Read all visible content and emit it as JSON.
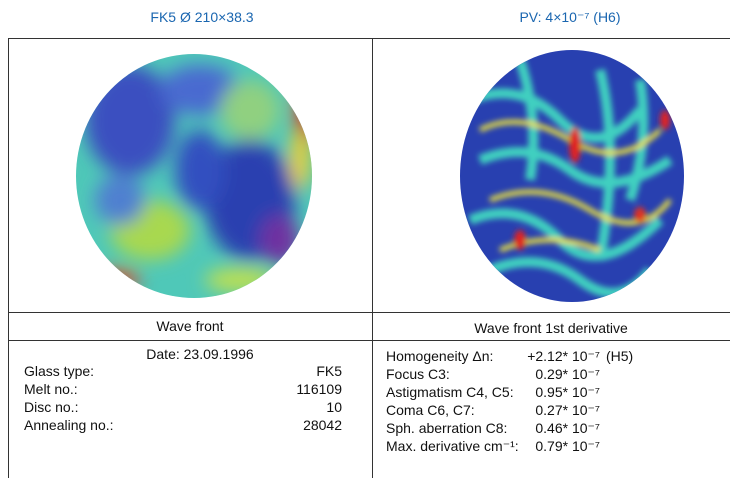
{
  "headers": [
    "FK5 Ø 210×38.3",
    "PV: 4×10⁻⁷ (H6)"
  ],
  "captions": [
    "Wave front",
    "Wave front 1st derivative"
  ],
  "left_panel": {
    "date": "Date: 23.09.1996",
    "rows": [
      [
        "Glass type:",
        "FK5"
      ],
      [
        "Melt no.:",
        "116109"
      ],
      [
        "Disc no.:",
        "10"
      ],
      [
        "Annealing no.:",
        "28042"
      ]
    ]
  },
  "right_panel": {
    "rows": [
      [
        "Homogeneity Δn:",
        "+2.12* 10⁻⁷",
        "(H5)"
      ],
      [
        "Focus C3:",
        "0.29* 10⁻⁷"
      ],
      [
        "Astigmatism C4, C5:",
        "0.95* 10⁻⁷"
      ],
      [
        "Coma C6, C7:",
        "0.27* 10⁻⁷"
      ],
      [
        "Sph. aberration C8:",
        "0.46* 10⁻⁷"
      ],
      [
        "Max. derivative cm⁻¹:",
        "0.79* 10⁻⁷"
      ]
    ]
  }
}
